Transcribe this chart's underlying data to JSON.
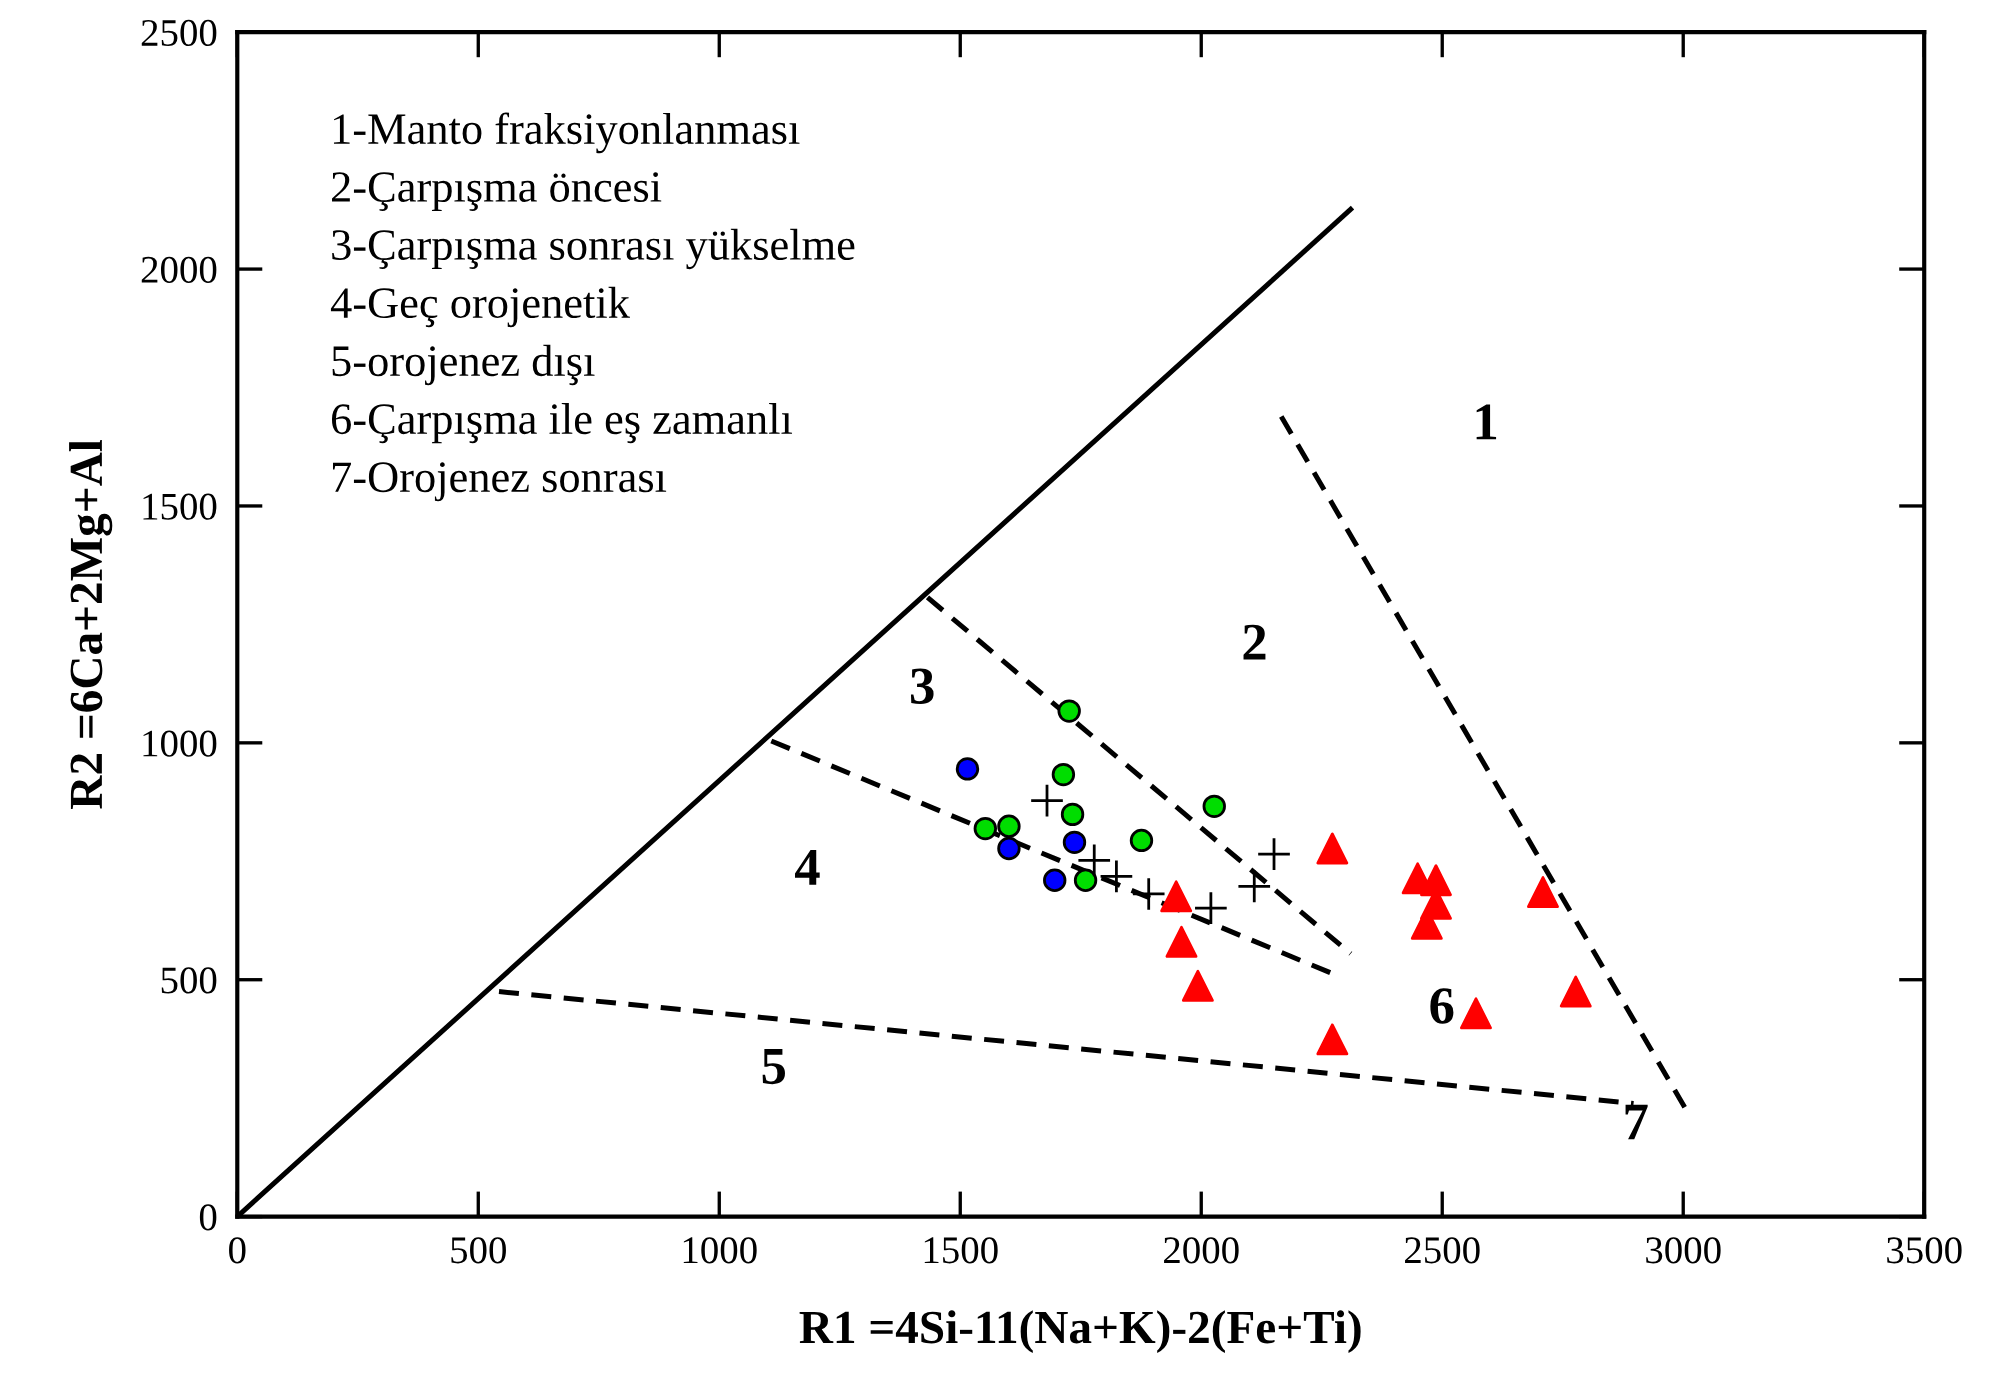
{
  "chart_data": {
    "type": "scatter",
    "xlabel": "R1 =4Si-11(Na+K)-2(Fe+Ti)",
    "ylabel": "R2 =6Ca+2Mg+Al",
    "xlim": [
      0,
      3500
    ],
    "ylim": [
      0,
      2500
    ],
    "xticks": [
      0,
      500,
      1000,
      1500,
      2000,
      2500,
      3000,
      3500
    ],
    "yticks": [
      0,
      500,
      1000,
      1500,
      2000,
      2500
    ],
    "grid": false,
    "series": [
      {
        "type": "line",
        "color": "#000000",
        "line_style": "solid",
        "marker": "none",
        "x": [
          0,
          2310
        ],
        "values": [
          0,
          2126
        ]
      },
      {
        "type": "line",
        "color": "#000000",
        "line_style": "dashed",
        "marker": "none",
        "x": [
          2166,
          3003
        ],
        "values": [
          1689,
          231
        ]
      },
      {
        "type": "line",
        "color": "#000000",
        "line_style": "dashed",
        "marker": "none",
        "x": [
          1432,
          2310
        ],
        "values": [
          1307,
          555
        ]
      },
      {
        "type": "line",
        "color": "#000000",
        "line_style": "dashed",
        "marker": "none",
        "x": [
          1108,
          2272
        ],
        "values": [
          1004,
          513
        ]
      },
      {
        "type": "line",
        "color": "#000000",
        "line_style": "dashed",
        "marker": "none",
        "x": [
          543,
          2897
        ],
        "values": [
          475,
          239
        ]
      },
      {
        "type": "scatter",
        "color": "#00dd00",
        "marker": "circle",
        "x": [
          1726,
          1714,
          1733,
          1552,
          1601,
          1876,
          2027,
          1760
        ],
        "values": [
          1067,
          933,
          849,
          819,
          824,
          794,
          866,
          710
        ]
      },
      {
        "type": "scatter",
        "color": "#0000ff",
        "marker": "circle",
        "x": [
          1515,
          1601,
          1737,
          1696
        ],
        "values": [
          945,
          777,
          790,
          710
        ]
      },
      {
        "type": "scatter",
        "color": "#000000",
        "marker": "cross",
        "x": [
          1680,
          1778,
          1824,
          1891,
          2020,
          2110,
          2151
        ],
        "values": [
          878,
          752,
          718,
          681,
          651,
          697,
          765
        ]
      },
      {
        "type": "scatter",
        "color": "#ff0000",
        "marker": "triangle",
        "x": [
          1948,
          1959,
          1993,
          2272,
          2272,
          2449,
          2487,
          2487,
          2468,
          2709,
          2777,
          2570
        ],
        "values": [
          676,
          580,
          487,
          777,
          374,
          714,
          710,
          660,
          618,
          685,
          475,
          429
        ]
      }
    ],
    "annotations": [
      "1-Manto fraksiyonlanması",
      "2-Çarpışma öncesi",
      "3-Çarpışma sonrası yükselme",
      "4-Geç orojenetik",
      "5-orojenez dışı",
      "6-Çarpışma ile eş zamanlı",
      "7-Orojenez sonrası",
      "1",
      "2",
      "3",
      "4",
      "5",
      "6",
      "7"
    ]
  }
}
